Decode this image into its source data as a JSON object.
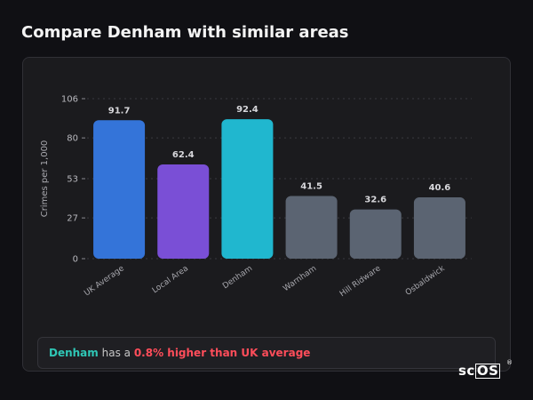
{
  "header": {
    "title": "Compare Denham with similar areas"
  },
  "chart_data": {
    "type": "bar",
    "ylabel": "Crimes per 1,000",
    "xlabel": "",
    "ylim": [
      0,
      106
    ],
    "yticks": [
      0,
      27,
      53,
      80,
      106
    ],
    "grid": true,
    "categories": [
      "UK Average",
      "Local Area",
      "Denham",
      "Warnham",
      "Hill Ridware",
      "Osbaldwick"
    ],
    "values": [
      91.7,
      62.4,
      92.4,
      41.5,
      32.6,
      40.6
    ],
    "value_labels": [
      "91.7",
      "62.4",
      "92.4",
      "41.5",
      "32.6",
      "40.6"
    ],
    "colors": [
      "#3474d9",
      "#7a4fd6",
      "#20b7cf",
      "#5b6472",
      "#5b6472",
      "#5b6472"
    ]
  },
  "summary": {
    "area": "Denham",
    "mid": " has a ",
    "diff": "0.8% higher than UK average"
  },
  "logo": {
    "text_plain": "sc",
    "text_boxed": "OS",
    "reg": "®"
  }
}
